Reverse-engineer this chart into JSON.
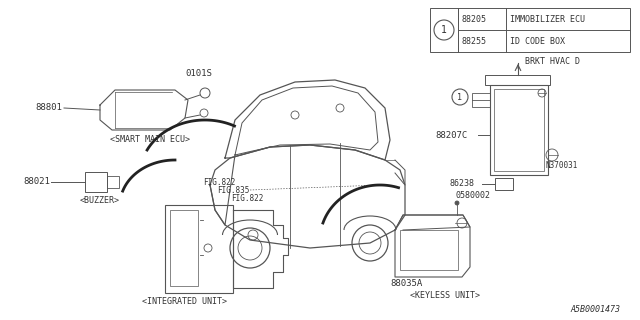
{
  "bg_color": "#ffffff",
  "line_color": "#555555",
  "text_color": "#333333",
  "diagram_id": "A5B0001473",
  "legend": {
    "rows": [
      {
        "part_num": "88205",
        "description": "IMMOBILIZER ECU"
      },
      {
        "part_num": "88255",
        "description": "ID CODE BOX"
      }
    ]
  }
}
